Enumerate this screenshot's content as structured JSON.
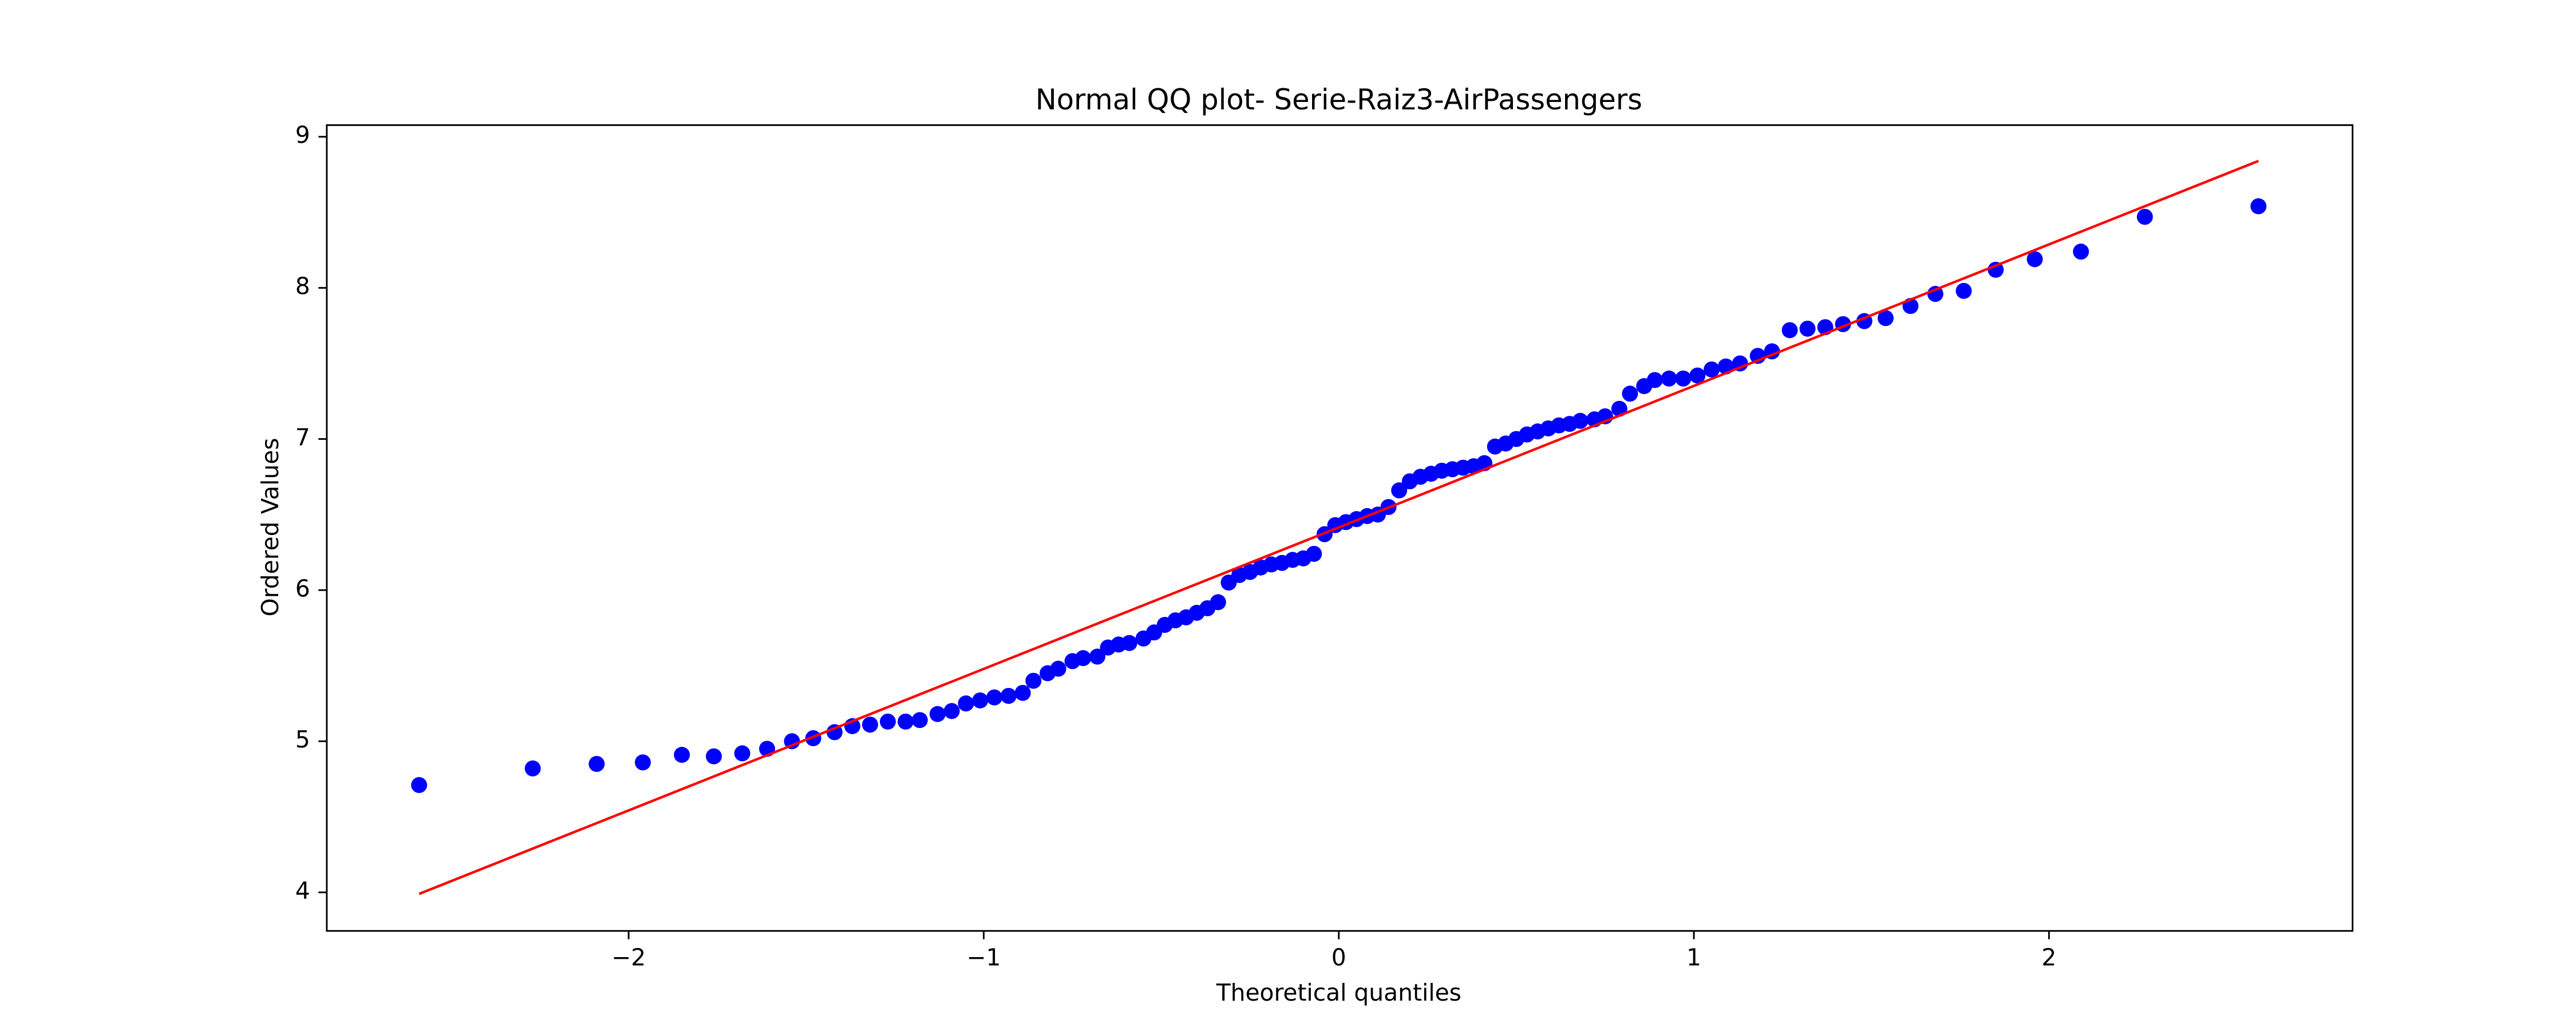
{
  "chart_data": {
    "type": "scatter",
    "title": "Normal QQ plot- Serie-Raiz3-AirPassengers",
    "x_label": "Theoretical quantiles",
    "y_label": "Ordered Values",
    "xlim": [
      -2.85,
      2.855
    ],
    "ylim": [
      3.745,
      9.077
    ],
    "xticks": [
      {
        "value": -2,
        "label": "−2"
      },
      {
        "value": -1,
        "label": "−1"
      },
      0,
      1,
      2
    ],
    "yticks": [
      4,
      5,
      6,
      7,
      8,
      9
    ],
    "grid": false,
    "series": [
      {
        "style": "markers",
        "color": "#0000ff",
        "x": [
          -2.59,
          -2.27,
          -2.09,
          -1.96,
          -1.85,
          -1.76,
          -1.68,
          -1.61,
          -1.54,
          -1.48,
          -1.42,
          -1.37,
          -1.32,
          -1.27,
          -1.22,
          -1.18,
          -1.13,
          -1.09,
          -1.05,
          -1.01,
          -0.97,
          -0.93,
          -0.89,
          -0.86,
          -0.82,
          -0.79,
          -0.75,
          -0.72,
          -0.68,
          -0.65,
          -0.62,
          -0.59,
          -0.55,
          -0.52,
          -0.49,
          -0.46,
          -0.43,
          -0.4,
          -0.37,
          -0.34,
          -0.31,
          -0.28,
          -0.25,
          -0.22,
          -0.19,
          -0.16,
          -0.13,
          -0.1,
          -0.07,
          -0.04,
          -0.01,
          0.02,
          0.05,
          0.08,
          0.11,
          0.14,
          0.17,
          0.2,
          0.23,
          0.26,
          0.29,
          0.32,
          0.35,
          0.38,
          0.41,
          0.44,
          0.47,
          0.5,
          0.53,
          0.56,
          0.59,
          0.62,
          0.65,
          0.68,
          0.72,
          0.75,
          0.79,
          0.82,
          0.86,
          0.89,
          0.93,
          0.97,
          1.01,
          1.05,
          1.09,
          1.13,
          1.18,
          1.22,
          1.27,
          1.32,
          1.37,
          1.42,
          1.48,
          1.54,
          1.61,
          1.68,
          1.76,
          1.85,
          1.96,
          2.09,
          2.27,
          2.59
        ],
        "values": [
          4.71,
          4.82,
          4.85,
          4.86,
          4.91,
          4.9,
          4.92,
          4.95,
          5.0,
          5.02,
          5.06,
          5.1,
          5.11,
          5.13,
          5.13,
          5.14,
          5.18,
          5.2,
          5.25,
          5.27,
          5.29,
          5.3,
          5.32,
          5.4,
          5.45,
          5.48,
          5.53,
          5.55,
          5.56,
          5.62,
          5.64,
          5.65,
          5.68,
          5.72,
          5.77,
          5.8,
          5.82,
          5.85,
          5.88,
          5.92,
          6.05,
          6.1,
          6.12,
          6.15,
          6.17,
          6.18,
          6.2,
          6.21,
          6.24,
          6.37,
          6.43,
          6.45,
          6.47,
          6.49,
          6.5,
          6.55,
          6.66,
          6.72,
          6.75,
          6.77,
          6.79,
          6.8,
          6.81,
          6.82,
          6.84,
          6.95,
          6.97,
          7.0,
          7.03,
          7.05,
          7.07,
          7.09,
          7.1,
          7.12,
          7.13,
          7.15,
          7.2,
          7.3,
          7.35,
          7.39,
          7.4,
          7.4,
          7.42,
          7.46,
          7.48,
          7.5,
          7.55,
          7.58,
          7.72,
          7.73,
          7.74,
          7.76,
          7.78,
          7.8,
          7.88,
          7.96,
          7.98,
          8.12,
          8.19,
          8.24,
          8.47,
          8.54
        ]
      },
      {
        "style": "line",
        "color": "#ff0000",
        "x": [
          -2.59,
          2.59
        ],
        "values": [
          3.99,
          8.84
        ]
      }
    ]
  }
}
